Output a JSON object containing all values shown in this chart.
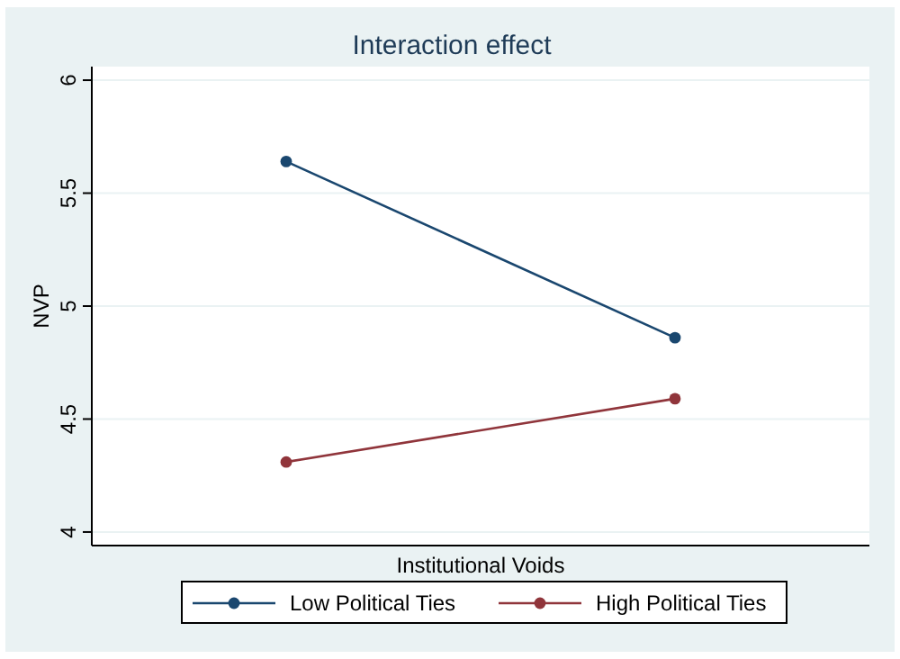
{
  "chart_data": {
    "type": "line",
    "title": "Interaction effect",
    "xlabel": "Institutional Voids",
    "ylabel": "NVP",
    "categories": [
      null,
      null
    ],
    "series": [
      {
        "name": "Low Political Ties",
        "color": "#1a476f",
        "values": [
          5.64,
          4.86
        ]
      },
      {
        "name": "High Political Ties",
        "color": "#90353b",
        "values": [
          4.31,
          4.59
        ]
      }
    ],
    "ylim": [
      3.94,
      6.06
    ],
    "yticks": [
      4,
      4.5,
      5,
      5.5,
      6
    ],
    "grid": "y",
    "legend": "bottom",
    "marker": "circle",
    "tick_labels": "y"
  }
}
